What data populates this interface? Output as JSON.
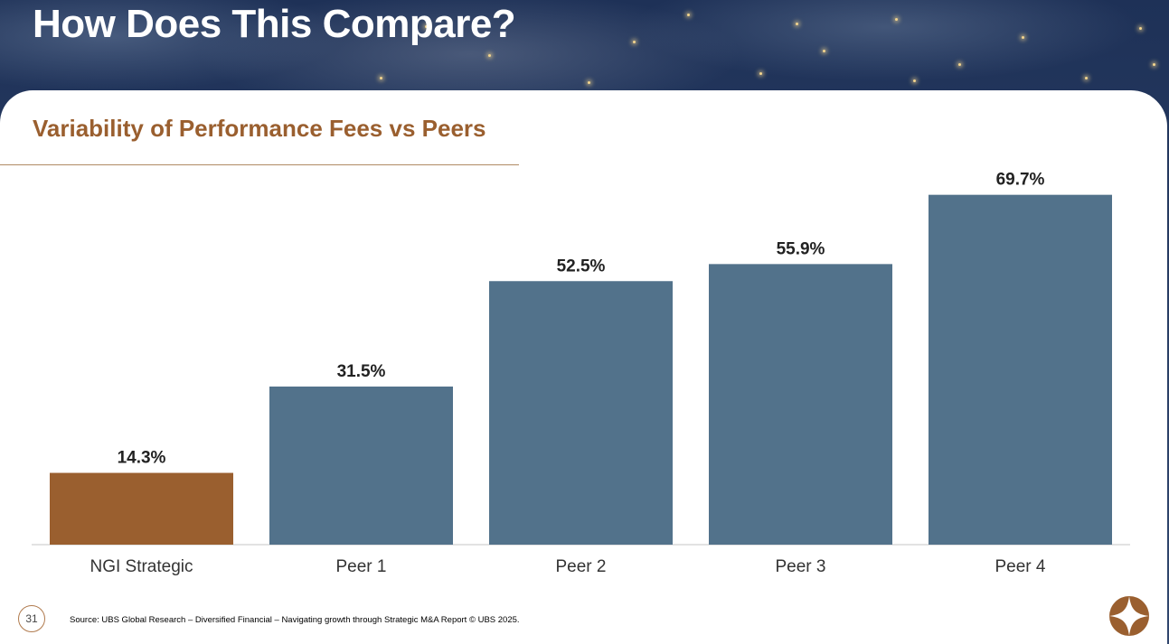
{
  "slide": {
    "title": "How Does This Compare?",
    "subtitle": "Variability of Performance Fees vs Peers",
    "source": "Source: UBS Global Research – Diversified Financial – Navigating growth through Strategic M&A Report © UBS 2025.",
    "page_number": "31"
  },
  "colors": {
    "highlight_bar": "#9a5f2f",
    "peer_bar": "#52728b",
    "subtitle": "#9a5f2f",
    "axis_line": "#d9d9d9"
  },
  "logo_icon": "compass-star-icon",
  "chart_data": {
    "type": "bar",
    "categories": [
      "NGI Strategic",
      "Peer 1",
      "Peer 2",
      "Peer 3",
      "Peer 4"
    ],
    "values": [
      14.3,
      31.5,
      52.5,
      55.9,
      69.7
    ],
    "value_labels": [
      "14.3%",
      "31.5%",
      "52.5%",
      "55.9%",
      "69.7%"
    ],
    "highlight_index": 0,
    "ylim": [
      0,
      70
    ],
    "grid": false,
    "legend": "none"
  }
}
